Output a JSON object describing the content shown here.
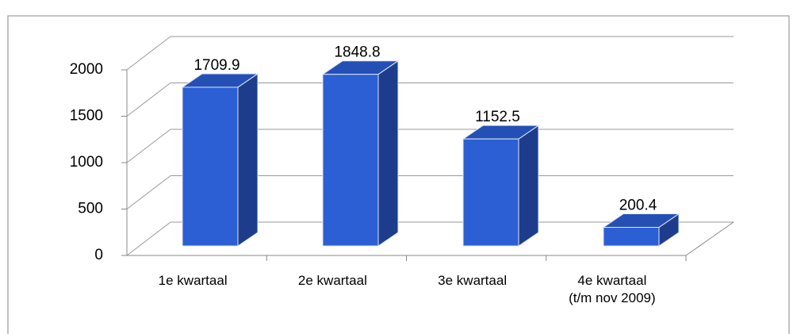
{
  "chart_data": {
    "type": "bar3d",
    "categories": [
      "1e kwartaal",
      "2e kwartaal",
      "3e kwartaal",
      "4e kwartaal (t/m nov 2009)"
    ],
    "values": [
      1709.9,
      1848.8,
      1152.5,
      200.4
    ],
    "color": "#2b5fd3",
    "ylim": [
      0,
      2000
    ],
    "yticks": [
      0,
      500,
      1000,
      1500,
      2000
    ],
    "grid": true
  }
}
